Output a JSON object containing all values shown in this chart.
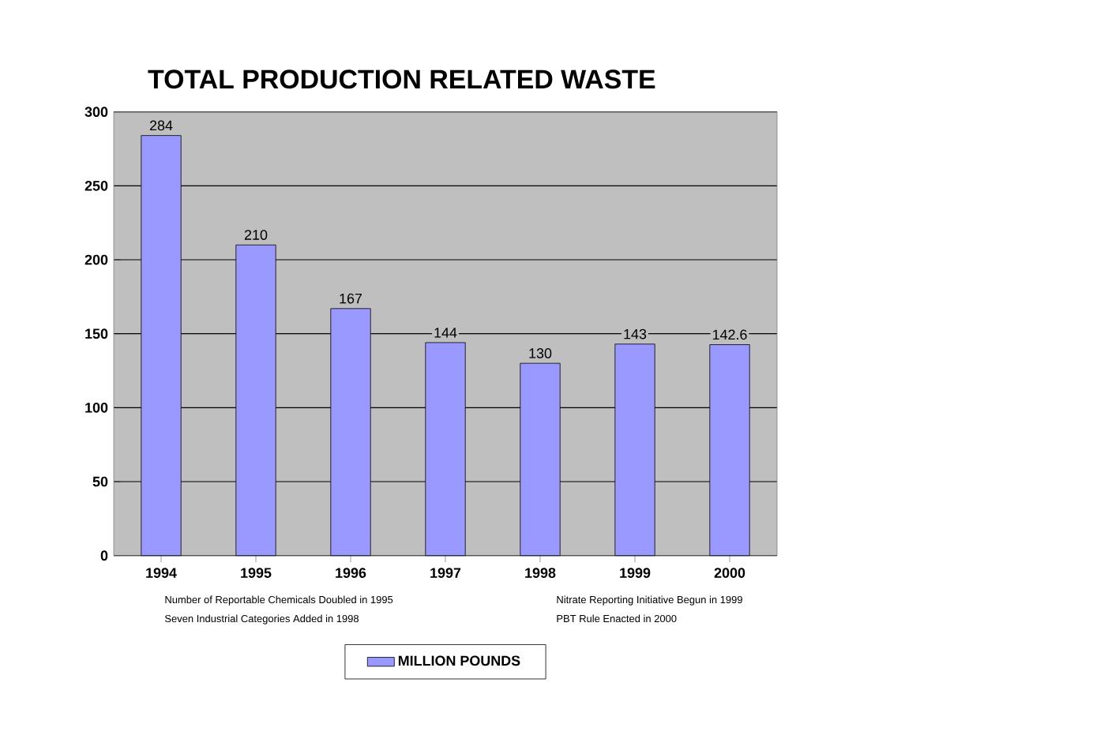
{
  "chart_data": {
    "type": "bar",
    "title": "TOTAL PRODUCTION RELATED WASTE",
    "categories": [
      "1994",
      "1995",
      "1996",
      "1997",
      "1998",
      "1999",
      "2000"
    ],
    "series": [
      {
        "name": "MILLION POUNDS",
        "color": "#9999ff",
        "values": [
          284,
          210,
          167,
          144,
          130,
          143,
          142.6
        ]
      }
    ],
    "ylim": [
      0,
      300
    ],
    "yticks": [
      0,
      50,
      100,
      150,
      200,
      250,
      300
    ],
    "grid": "y",
    "legend": "bottom",
    "data_labels": true,
    "annotations": [
      "Number of Reportable Chemicals Doubled in 1995",
      "Nitrate Reporting Initiative Begun in 1999",
      "Seven Industrial Categories Added in 1998",
      "PBT Rule Enacted in 2000"
    ]
  }
}
